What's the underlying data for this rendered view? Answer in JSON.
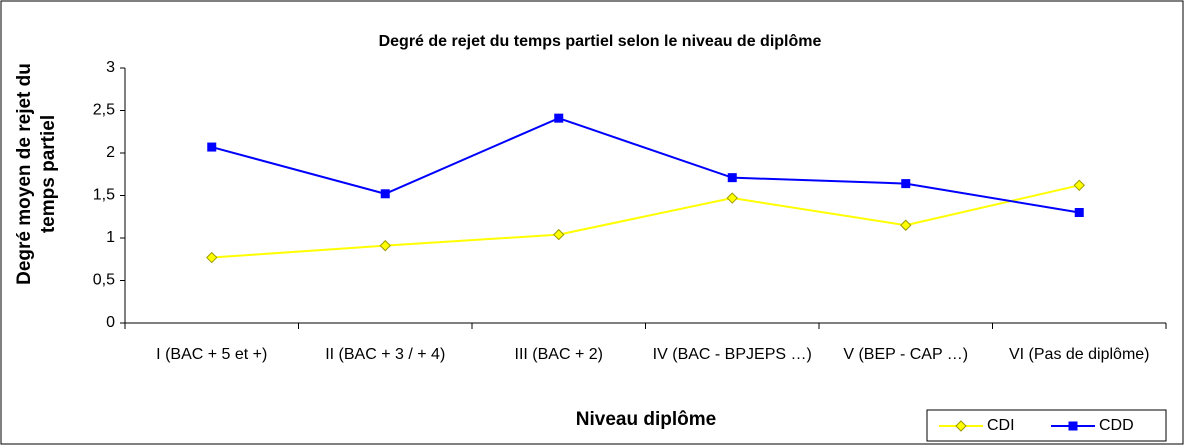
{
  "chart_data": {
    "type": "line",
    "title": "Degré de rejet du temps partiel selon le niveau de diplôme",
    "x_label": "Niveau diplôme",
    "y_label": "Degré moyen de rejet du temps partiel",
    "categories": [
      "I (BAC + 5 et +)",
      "II (BAC + 3 / + 4)",
      "III (BAC + 2)",
      "IV (BAC - BPJEPS …)",
      "V (BEP - CAP …)",
      "VI (Pas de diplôme)"
    ],
    "series": [
      {
        "name": "CDI",
        "color": "#ffff00",
        "values": [
          0.77,
          0.91,
          1.04,
          1.47,
          1.15,
          1.62
        ]
      },
      {
        "name": "CDD",
        "color": "#0000ff",
        "values": [
          2.07,
          1.52,
          2.41,
          1.71,
          1.64,
          1.3
        ]
      }
    ],
    "ylim": [
      0,
      3
    ],
    "yticks": [
      0,
      {
        "value": 0.5,
        "label": "0,5"
      },
      1,
      {
        "value": 1.5,
        "label": "1,5"
      },
      2,
      {
        "value": 2.5,
        "label": "2,5"
      },
      3
    ],
    "grid": false,
    "legend": "bottom-right"
  }
}
